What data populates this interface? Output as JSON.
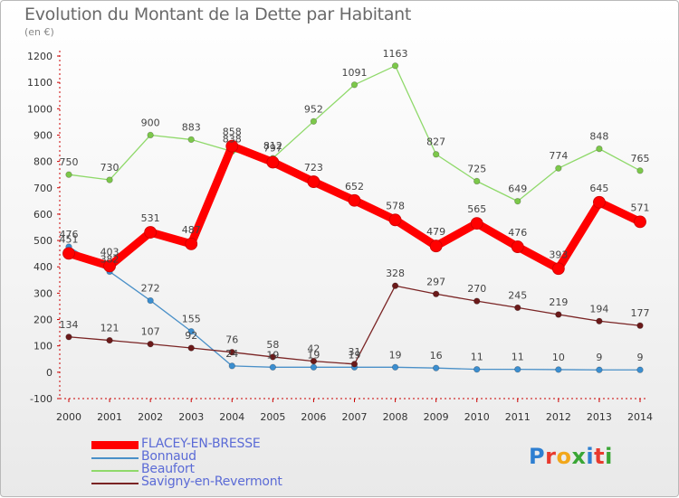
{
  "title": "Evolution du Montant de la Dette par Habitant",
  "unit_label": "(en €)",
  "logo_text": "Proxiti",
  "chart_data": {
    "type": "line",
    "title": "Evolution du Montant de la Dette par Habitant",
    "subtitle": "(en €)",
    "x": [
      "2000",
      "2001",
      "2002",
      "2003",
      "2004",
      "2005",
      "2006",
      "2007",
      "2008",
      "2009",
      "2010",
      "2011",
      "2012",
      "2013",
      "2014"
    ],
    "ylim": [
      -100,
      1200
    ],
    "yticks": [
      -100,
      0,
      100,
      200,
      300,
      400,
      500,
      600,
      700,
      800,
      900,
      1000,
      1100,
      1200
    ],
    "grid": false,
    "legend_position": "bottom-left",
    "series": [
      {
        "name": "FLACEY-EN-BRESSE",
        "color": "#ff0000",
        "values": [
          451,
          403,
          531,
          487,
          858,
          797,
          723,
          652,
          578,
          479,
          565,
          476,
          393,
          645,
          571
        ]
      },
      {
        "name": "Bonnaud",
        "color": "#4a90c8",
        "values": [
          476,
          382,
          272,
          155,
          24,
          19,
          19,
          19,
          19,
          16,
          11,
          11,
          10,
          9,
          9
        ]
      },
      {
        "name": "Beaufort",
        "color": "#8fd96a",
        "values": [
          750,
          730,
          900,
          883,
          838,
          812,
          952,
          1091,
          1163,
          827,
          725,
          649,
          774,
          848,
          765
        ]
      },
      {
        "name": "Savigny-en-Revermont",
        "color": "#7a2424",
        "values": [
          134,
          121,
          107,
          92,
          76,
          58,
          42,
          31,
          328,
          297,
          270,
          245,
          219,
          194,
          177
        ]
      }
    ]
  }
}
